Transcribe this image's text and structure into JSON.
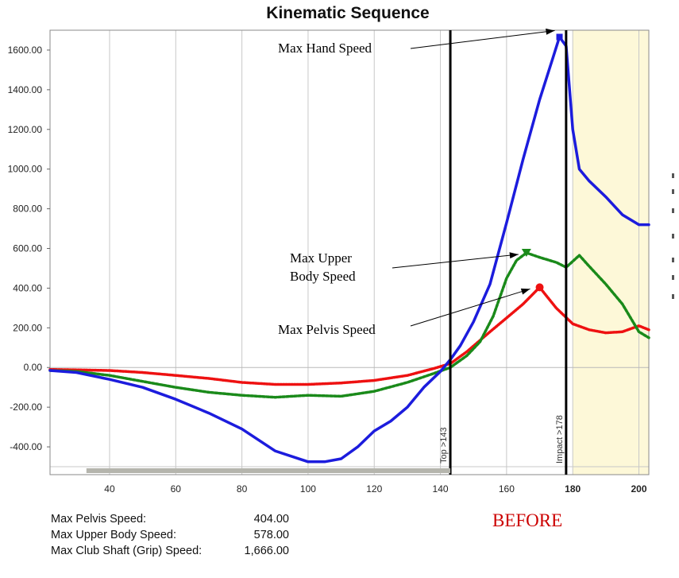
{
  "chart_data": {
    "type": "line",
    "title": "Kinematic Sequence",
    "xlim": [
      22,
      203
    ],
    "ylim": [
      -540,
      1700
    ],
    "x_ticks": [
      40,
      60,
      80,
      100,
      120,
      140,
      160,
      180,
      200
    ],
    "y_ticks": [
      "1600.00",
      "1400.00",
      "1200.00",
      "1000.00",
      "800.00",
      "600.00",
      "400.00",
      "200.00",
      "0.00",
      "-200.00",
      "-400.00"
    ],
    "y_tick_values": [
      1600,
      1400,
      1200,
      1000,
      800,
      600,
      400,
      200,
      0,
      -200,
      -400
    ],
    "grid": true,
    "highlight_region": [
      180,
      203
    ],
    "highlight_color": "#fdf8d8",
    "series": [
      {
        "name": "Pelvis",
        "color": "#ee1111",
        "style": "dotted",
        "x": [
          22,
          30,
          40,
          50,
          60,
          70,
          80,
          90,
          100,
          110,
          120,
          130,
          138,
          143,
          148,
          155,
          160,
          165,
          170,
          175,
          180,
          185,
          190,
          195,
          200,
          203
        ],
        "y": [
          -10,
          -12,
          -15,
          -25,
          -40,
          -55,
          -75,
          -85,
          -85,
          -78,
          -65,
          -40,
          -5,
          20,
          80,
          180,
          250,
          320,
          404,
          300,
          220,
          190,
          175,
          180,
          210,
          190
        ]
      },
      {
        "name": "Upper Body",
        "color": "#1a8a1a",
        "style": "dashed",
        "x": [
          22,
          30,
          40,
          50,
          60,
          70,
          80,
          90,
          100,
          110,
          120,
          130,
          138,
          143,
          148,
          152,
          156,
          160,
          163,
          166,
          170,
          175,
          178,
          182,
          185,
          190,
          195,
          200,
          203
        ],
        "y": [
          -15,
          -20,
          -40,
          -70,
          -100,
          -125,
          -140,
          -150,
          -140,
          -145,
          -120,
          -75,
          -30,
          0,
          60,
          130,
          260,
          450,
          540,
          578,
          555,
          530,
          505,
          565,
          510,
          420,
          320,
          180,
          150
        ]
      },
      {
        "name": "Club Shaft (Grip)",
        "color": "#1c1cdd",
        "style": "solid",
        "x": [
          22,
          30,
          40,
          50,
          60,
          70,
          80,
          90,
          100,
          105,
          110,
          115,
          120,
          125,
          130,
          135,
          140,
          143,
          146,
          150,
          155,
          160,
          165,
          170,
          174,
          176,
          178,
          180,
          182,
          185,
          190,
          195,
          200,
          203
        ],
        "y": [
          -15,
          -25,
          -60,
          -100,
          -160,
          -230,
          -310,
          -420,
          -475,
          -475,
          -460,
          -400,
          -320,
          -270,
          -200,
          -100,
          -20,
          40,
          110,
          230,
          420,
          730,
          1050,
          1350,
          1560,
          1666,
          1620,
          1200,
          1000,
          940,
          860,
          770,
          720,
          720
        ]
      }
    ],
    "markers": [
      {
        "series": "Club Shaft (Grip)",
        "x": 176,
        "y": 1666,
        "shape": "square"
      },
      {
        "series": "Upper Body",
        "x": 166,
        "y": 578,
        "shape": "triangle"
      },
      {
        "series": "Pelvis",
        "x": 170,
        "y": 404,
        "shape": "circle"
      }
    ],
    "vertical_lines": [
      {
        "x": 143,
        "label": "Top >143"
      },
      {
        "x": 178,
        "label": "Impact >178"
      }
    ],
    "annotations": [
      {
        "lines": [
          "Max Hand Speed"
        ],
        "target_x": 176,
        "target_y": 1666
      },
      {
        "lines": [
          "Max Upper",
          "Body Speed"
        ],
        "target_x": 166,
        "target_y": 578
      },
      {
        "lines": [
          "Max Pelvis Speed"
        ],
        "target_x": 170,
        "target_y": 404
      }
    ],
    "scrollbar_range": [
      33,
      143
    ]
  },
  "summary": [
    {
      "label": "Max Pelvis Speed:",
      "value": "404.00"
    },
    {
      "label": "Max Upper Body Speed:",
      "value": "578.00"
    },
    {
      "label": "Max Club Shaft (Grip) Speed:",
      "value": "1,666.00"
    }
  ],
  "note": "BEFORE"
}
